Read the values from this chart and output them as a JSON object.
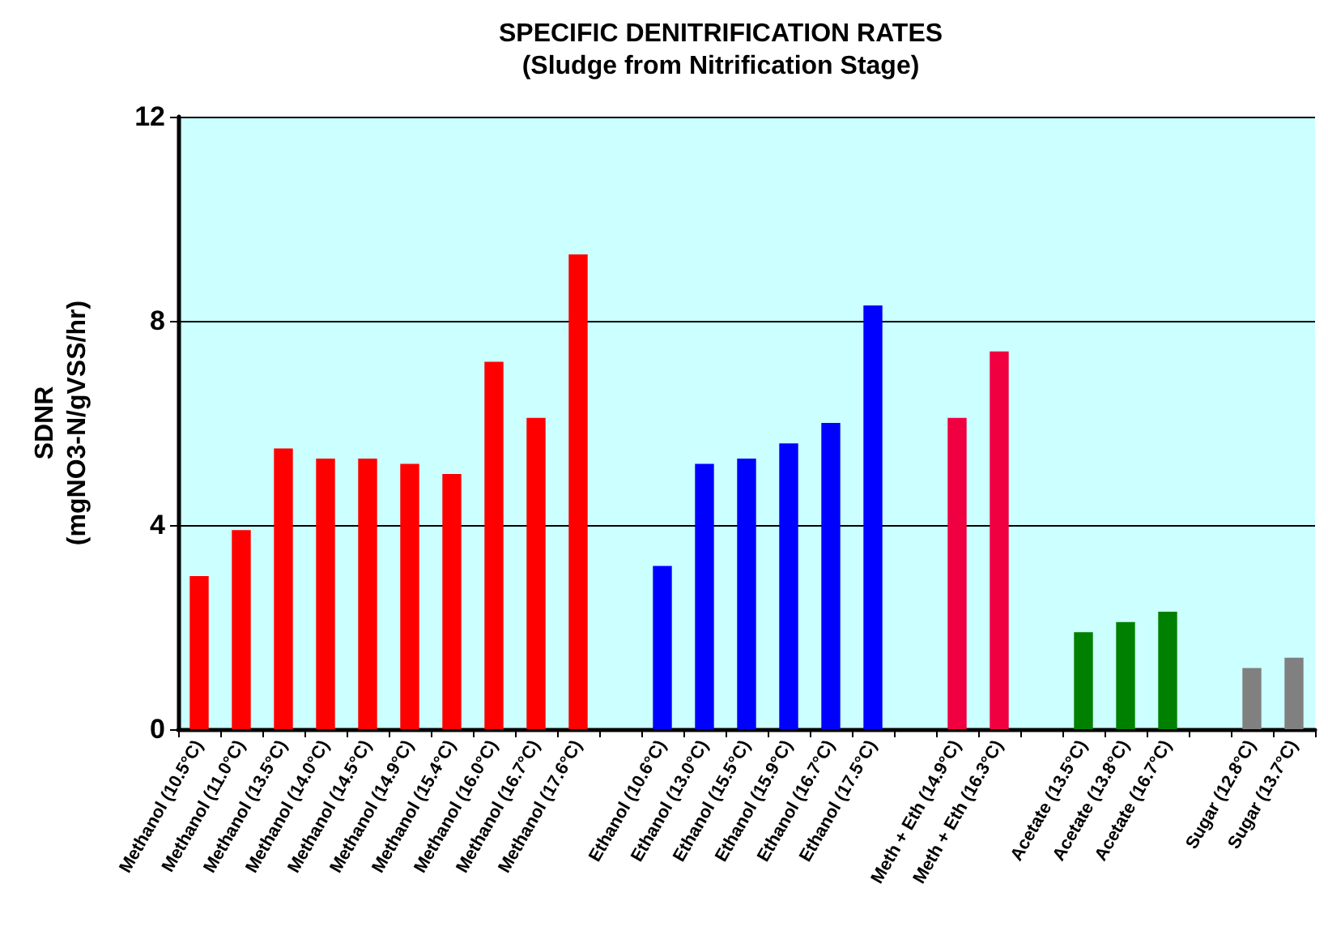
{
  "chart_data": {
    "type": "bar",
    "title": "SPECIFIC DENITRIFICATION RATES",
    "subtitle": "(Sludge from Nitrification Stage)",
    "ylabel": "SDNR\n(mgNO3-N/gVSS/hr)",
    "categories": [
      "Methanol (10.5°C)",
      "Methanol (11.0°C)",
      "Methanol (13.5°C)",
      "Methanol (14.0°C)",
      "Methanol (14.5°C)",
      "Methanol (14.9°C)",
      "Methanol (15.4°C)",
      "Methanol (16.0°C)",
      "Methanol (16.7°C)",
      "Methanol (17.6°C)",
      null,
      "Ethanol (10.6°C)",
      "Ethanol (13.0°C)",
      "Ethanol (15.5°C)",
      "Ethanol (15.9°C)",
      "Ethanol (16.7°C)",
      "Ethanol (17.5°C)",
      null,
      "Meth + Eth (14.9°C)",
      "Meth + Eth (16.3°C)",
      null,
      "Acetate (13.5°C)",
      "Acetate (13.8°C)",
      "Acetate (16.7°C)",
      null,
      "Sugar (12.8°C)",
      "Sugar (13.7°C)"
    ],
    "values": [
      3.0,
      3.9,
      5.5,
      5.3,
      5.3,
      5.2,
      5.0,
      7.2,
      6.1,
      9.3,
      null,
      3.2,
      5.2,
      5.3,
      5.6,
      6.0,
      8.3,
      null,
      6.1,
      7.4,
      null,
      1.9,
      2.1,
      2.3,
      null,
      1.2,
      1.4
    ],
    "colors": [
      "#ff0000",
      "#ff0000",
      "#ff0000",
      "#ff0000",
      "#ff0000",
      "#ff0000",
      "#ff0000",
      "#ff0000",
      "#ff0000",
      "#ff0000",
      null,
      "#0000ff",
      "#0000ff",
      "#0000ff",
      "#0000ff",
      "#0000ff",
      "#0000ff",
      null,
      "#f00040",
      "#f00040",
      null,
      "#008000",
      "#008000",
      "#008000",
      null,
      "#808080",
      "#808080"
    ],
    "ylim": [
      0,
      12
    ],
    "yticks": [
      0,
      4,
      8,
      12
    ],
    "grid": "y"
  }
}
